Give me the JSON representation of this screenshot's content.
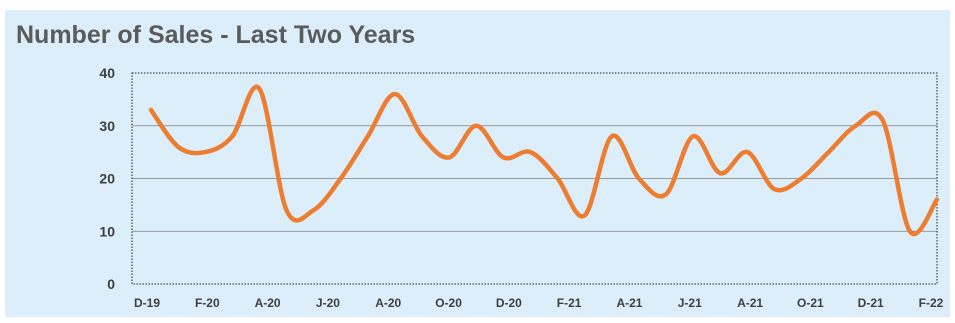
{
  "chart_data": {
    "type": "line",
    "title": "Number of Sales - Last Two Years",
    "xlabel": "",
    "ylabel": "",
    "ylim": [
      0,
      40
    ],
    "yticks": [
      0,
      10,
      20,
      30,
      40
    ],
    "grid": true,
    "legend": "none",
    "x_tick_labels": [
      "D-19",
      "F-20",
      "A-20",
      "J-20",
      "A-20",
      "O-20",
      "D-20",
      "F-21",
      "A-21",
      "J-21",
      "A-21",
      "O-21",
      "D-21",
      "F-22"
    ],
    "series": [
      {
        "color": "#ed7d31",
        "values": [
          33,
          26,
          25,
          28,
          37,
          14,
          14,
          20,
          28,
          36,
          28,
          24,
          30,
          24,
          25,
          20,
          13,
          28,
          20,
          17,
          28,
          21,
          25,
          18,
          20,
          25,
          30,
          31,
          10,
          16
        ]
      }
    ]
  },
  "colors": {
    "background": "#dbeefa",
    "line": "#ed7d31",
    "grid": "#7f7f7f",
    "text": "#3f3f3f",
    "title": "#5b5b5b"
  }
}
